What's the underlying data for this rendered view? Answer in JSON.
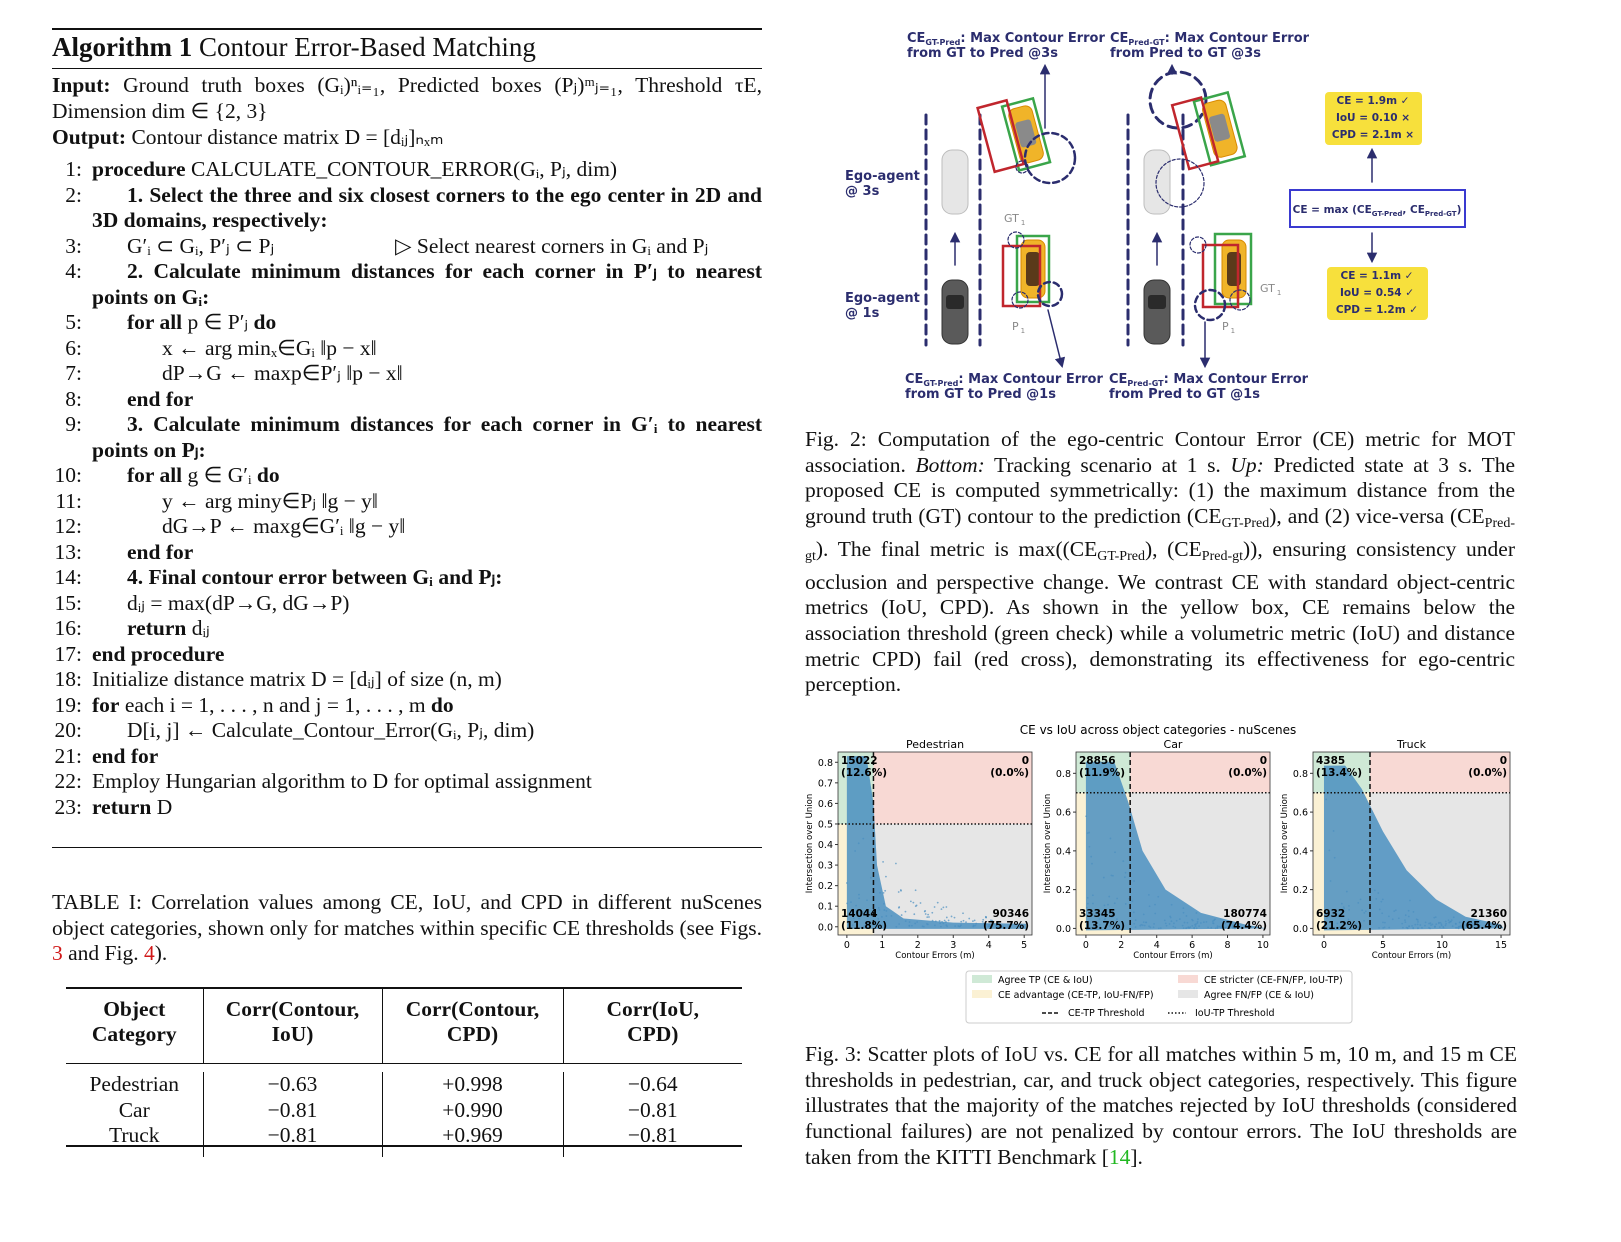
{
  "algorithm": {
    "label": "Algorithm 1",
    "title": "Contour Error-Based Matching",
    "input_label": "Input:",
    "input": "Ground truth boxes (Gᵢ)ⁿᵢ₌₁, Predicted boxes (Pⱼ)ᵐⱼ₌₁, Threshold τE, Dimension dim ∈ {2, 3}",
    "output_label": "Output:",
    "output": "Contour distance matrix D = [dᵢⱼ]ₙₓₘ",
    "lines": [
      {
        "number": "1:",
        "text": "procedure CALCULATE_CONTOUR_ERROR(Gᵢ, Pⱼ, dim)"
      },
      {
        "number": "2:",
        "text": "1. Select the three and six closest corners to the ego center in 2D and 3D domains, respectively:"
      },
      {
        "number": "3:",
        "text": "G′ᵢ ⊂ Gᵢ, P′ⱼ ⊂ Pⱼ",
        "comment": "▷ Select nearest corners in Gᵢ and Pⱼ"
      },
      {
        "number": "4:",
        "text": "2. Calculate minimum distances for each corner in P′ⱼ to nearest points on Gᵢ:"
      },
      {
        "number": "5:",
        "text": "for all p ∈ P′ⱼ do"
      },
      {
        "number": "6:",
        "text": "x ← arg minₓ∈Gᵢ ‖p − x‖"
      },
      {
        "number": "7:",
        "text": "dP→G ← maxp∈P′ⱼ ‖p − x‖"
      },
      {
        "number": "8:",
        "text": "end for"
      },
      {
        "number": "9:",
        "text": "3. Calculate minimum distances for each corner in G′ᵢ to nearest points on Pⱼ:"
      },
      {
        "number": "10:",
        "text": "for all g ∈ G′ᵢ do"
      },
      {
        "number": "11:",
        "text": "y ← arg miny∈Pⱼ ‖g − y‖"
      },
      {
        "number": "12:",
        "text": "dG→P ← maxg∈G′ᵢ ‖g − y‖"
      },
      {
        "number": "13:",
        "text": "end for"
      },
      {
        "number": "14:",
        "text": "4. Final contour error between Gᵢ and Pⱼ:"
      },
      {
        "number": "15:",
        "text": "dᵢⱼ = max(dP→G, dG→P)"
      },
      {
        "number": "16:",
        "text": "return dᵢⱼ"
      },
      {
        "number": "17:",
        "text": "end procedure"
      },
      {
        "number": "18:",
        "text": "Initialize distance matrix D = [dᵢⱼ] of size (n, m)"
      },
      {
        "number": "19:",
        "text": "for each i = 1, . . . , n and j = 1, . . . , m do"
      },
      {
        "number": "20:",
        "text": "D[i, j] ← Calculate_Contour_Error(Gᵢ, Pⱼ, dim)"
      },
      {
        "number": "21:",
        "text": "end for"
      },
      {
        "number": "22:",
        "text": "Employ Hungarian algorithm to D for optimal assignment"
      },
      {
        "number": "23:",
        "text": "return D"
      }
    ]
  },
  "table": {
    "caption": [
      "TABLE I: Correlation values among CE, IoU, and CPD in different nuScenes object categories, shown only for matches within specific CE thresholds (see Figs. ",
      "3",
      " and Fig. ",
      "4",
      ")."
    ],
    "header": [
      "Object Category",
      "Corr(Contour, IoU)",
      "Corr(Contour, CPD)",
      "Corr(IoU, CPD)"
    ],
    "rows": [
      [
        "Pedestrian",
        "−0.63",
        "+0.998",
        "−0.64"
      ],
      [
        "Car",
        "−0.81",
        "+0.990",
        "−0.81"
      ],
      [
        "Truck",
        "−0.81",
        "+0.969",
        "−0.81"
      ]
    ]
  },
  "figure2": {
    "top_left": {
      "main": "CE",
      "sub": "GT-Pred",
      "rest": ": Max Contour Error",
      "line2": "from GT to Pred @3s"
    },
    "top_right": {
      "main": "CE",
      "sub": "Pred-GT",
      "rest": ": Max Contour Error",
      "line2": "from Pred to GT @3s"
    },
    "bottom_left": {
      "main": "CE",
      "sub": "GT-Pred",
      "rest": ": Max Contour Error",
      "line2": "from GT to Pred @1s"
    },
    "bottom_right": {
      "main": "CE",
      "sub": "Pred-GT",
      "rest": ": Max Contour Error",
      "line2": "from Pred to GT @1s"
    },
    "ego_3s": [
      "Ego-agent",
      "@ 3s"
    ],
    "ego_1s": [
      "Ego-agent",
      "@ 1s"
    ],
    "gt_left": {
      "main": "GT",
      "sub": "1"
    },
    "p_left": {
      "main": "P",
      "sub": "1"
    },
    "gt_right": {
      "main": "GT",
      "sub": "1"
    },
    "p_right": {
      "main": "P",
      "sub": "1"
    },
    "result_3s": [
      "CE = 1.9m ✓",
      "IoU = 0.10 ×",
      "CPD = 2.1m ×"
    ],
    "formula": {
      "a": "CE = max (CE",
      "sub1": "GT-Pred",
      "b": ", CE",
      "sub2": "Pred-GT",
      "c": ")"
    },
    "result_1s": [
      "CE = 1.1m ✓",
      "IoU = 0.54 ✓",
      "CPD = 1.2m ✓"
    ],
    "caption": [
      "Fig. 2: Computation of the ego-centric Contour Error (CE) metric for MOT association. ",
      "Bottom:",
      " Tracking scenario at 1 s. ",
      "Up:",
      " Predicted state at 3 s. The proposed CE is computed symmetrically: (1) the maximum distance from the ground truth (GT) contour to the prediction (CE",
      "GT-Pred",
      "), and (2) vice-versa (CE",
      "Pred-gt",
      "). The final metric is max((CE",
      "GT-Pred",
      "), (CE",
      "Pred-gt",
      ")), ensuring consistency under occlusion and perspective change. We contrast CE with standard object-centric metrics (IoU, CPD). As shown in the yellow box, CE remains below the association threshold (green check) while a volumetric metric (IoU) and distance metric CPD) fail (red cross), demonstrating its effectiveness for ego-centric perception."
    ]
  },
  "figure3": {
    "title": "CE vs IoU across object categories - nuScenes",
    "y_label": "Intersection over Union",
    "x_label": "Contour Errors (m)",
    "panels": [
      {
        "name": "Pedestrian",
        "top_left": [
          "15022",
          "(12.6%)"
        ],
        "top_right": [
          "0",
          "(0.0%)"
        ],
        "bottom_left": [
          "14044",
          "(11.8%)"
        ],
        "bottom_right": [
          "90346",
          "(75.7%)"
        ],
        "xticks": [
          "0",
          "1",
          "2",
          "3",
          "4",
          "5"
        ],
        "yticks": [
          "0.0",
          "0.1",
          "0.2",
          "0.3",
          "0.4",
          "0.5",
          "0.6",
          "0.7",
          "0.8"
        ]
      },
      {
        "name": "Car",
        "top_left": [
          "28856",
          "(11.9%)"
        ],
        "top_right": [
          "0",
          "(0.0%)"
        ],
        "bottom_left": [
          "33345",
          "(13.7%)"
        ],
        "bottom_right": [
          "180774",
          "(74.4%)"
        ],
        "xticks": [
          "0",
          "2",
          "4",
          "6",
          "8",
          "10"
        ],
        "yticks": [
          "0.0",
          "0.2",
          "0.4",
          "0.6",
          "0.8"
        ]
      },
      {
        "name": "Truck",
        "top_left": [
          "4385",
          "(13.4%)"
        ],
        "top_right": [
          "0",
          "(0.0%)"
        ],
        "bottom_left": [
          "6932",
          "(21.2%)"
        ],
        "bottom_right": [
          "21360",
          "(65.4%)"
        ],
        "xticks": [
          "0",
          "5",
          "10",
          "15"
        ],
        "yticks": [
          "0.0",
          "0.2",
          "0.4",
          "0.6",
          "0.8"
        ]
      }
    ],
    "legend": [
      "Agree TP (CE & IoU)",
      "CE stricter (CE-FN/FP, IoU-TP)",
      "CE advantage (CE-TP, IoU-FN/FP)",
      "Agree FN/FP (CE & IoU)",
      "CE-TP Threshold",
      "IoU-TP Threshold"
    ],
    "caption": [
      "Fig. 3: Scatter plots of IoU vs. CE for all matches within 5 m, 10 m, and 15 m CE thresholds in pedestrian, car, and truck object categories, respectively. This figure illustrates that the majority of the matches rejected by IoU thresholds (considered functional failures) are not penalized by contour errors. The IoU thresholds are taken from the KITTI Benchmark [",
      "14",
      "]."
    ]
  }
}
